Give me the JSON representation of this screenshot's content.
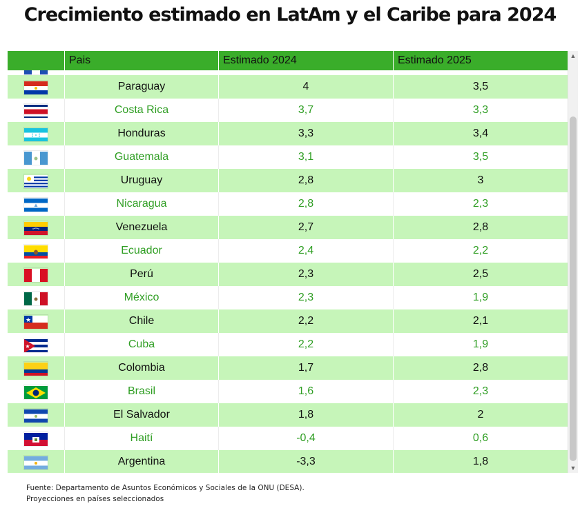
{
  "title": "Crecimiento estimado en LatAm y el Caribe para 2024",
  "chart_data": {
    "type": "table",
    "columns": [
      "",
      "Pais",
      "Estimado 2024",
      "Estimado 2025"
    ],
    "rows": [
      {
        "country": "Paraguay",
        "e2024": "4",
        "e2025": "3,5",
        "flag": "paraguay-flag"
      },
      {
        "country": "Costa Rica",
        "e2024": "3,7",
        "e2025": "3,3",
        "flag": "costa-rica-flag"
      },
      {
        "country": "Honduras",
        "e2024": "3,3",
        "e2025": "3,4",
        "flag": "honduras-flag"
      },
      {
        "country": "Guatemala",
        "e2024": "3,1",
        "e2025": "3,5",
        "flag": "guatemala-flag"
      },
      {
        "country": "Uruguay",
        "e2024": "2,8",
        "e2025": "3",
        "flag": "uruguay-flag"
      },
      {
        "country": "Nicaragua",
        "e2024": "2,8",
        "e2025": "2,3",
        "flag": "nicaragua-flag"
      },
      {
        "country": "Venezuela",
        "e2024": "2,7",
        "e2025": "2,8",
        "flag": "venezuela-flag"
      },
      {
        "country": "Ecuador",
        "e2024": "2,4",
        "e2025": "2,2",
        "flag": "ecuador-flag"
      },
      {
        "country": "Perú",
        "e2024": "2,3",
        "e2025": "2,5",
        "flag": "peru-flag"
      },
      {
        "country": "México",
        "e2024": "2,3",
        "e2025": "1,9",
        "flag": "mexico-flag"
      },
      {
        "country": "Chile",
        "e2024": "2,2",
        "e2025": "2,1",
        "flag": "chile-flag"
      },
      {
        "country": "Cuba",
        "e2024": "2,2",
        "e2025": "1,9",
        "flag": "cuba-flag"
      },
      {
        "country": "Colombia",
        "e2024": "1,7",
        "e2025": "2,8",
        "flag": "colombia-flag"
      },
      {
        "country": "Brasil",
        "e2024": "1,6",
        "e2025": "2,3",
        "flag": "brasil-flag"
      },
      {
        "country": "El Salvador",
        "e2024": "1,8",
        "e2025": "2",
        "flag": "el-salvador-flag"
      },
      {
        "country": "Haití",
        "e2024": "-0,4",
        "e2025": "0,6",
        "flag": "haiti-flag"
      },
      {
        "country": "Argentina",
        "e2024": "-3,3",
        "e2025": "1,8",
        "flag": "argentina-flag"
      }
    ]
  },
  "colors": {
    "header": "#3aad2a",
    "row_alt": "#c6f5b9",
    "text_green": "#2f9e23"
  },
  "footnotes": [
    "Fuente: Departamento de Asuntos Económicos y Sociales de la ONU (DESA).",
    "Proyecciones en países seleccionados"
  ]
}
